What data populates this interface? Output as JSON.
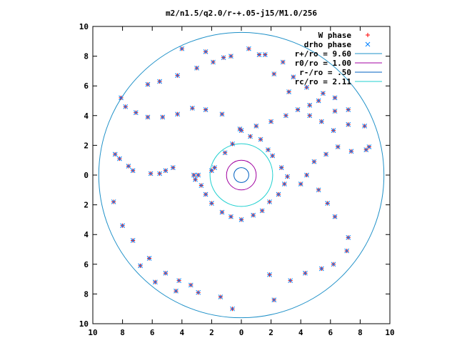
{
  "chart_data": {
    "type": "scatter",
    "title": "m2/n1.5/q2.0/r-+.05-j15/M1.0/256",
    "xlabel": "",
    "ylabel": "",
    "xlim": [
      -10,
      10
    ],
    "ylim": [
      -10,
      10
    ],
    "grid": false,
    "legend_position": "top-right",
    "x_tick_labels": [
      "10",
      "8",
      "6",
      "4",
      "2",
      "0",
      "2",
      "4",
      "6",
      "8",
      "10"
    ],
    "y_tick_labels": [
      "10",
      "8",
      "6",
      "4",
      "2",
      "0",
      "2",
      "4",
      "6",
      "8",
      "10"
    ],
    "legend": [
      {
        "label": "W phase",
        "marker": "plus",
        "color": "#ff0000"
      },
      {
        "label": "drho phase",
        "marker": "cross",
        "color": "#0080ff"
      },
      {
        "label": "r+/ro = 9.60",
        "marker": "line",
        "color": "#1e90c8"
      },
      {
        "label": "r0/ro = 1.00",
        "marker": "line",
        "color": "#a000a0"
      },
      {
        "label": "r-/ro = .50",
        "marker": "line",
        "color": "#0060c0"
      },
      {
        "label": "rc/ro = 2.11",
        "marker": "line",
        "color": "#20d0d0"
      }
    ],
    "circles": [
      {
        "name": "r+/ro = 9.60",
        "radius": 9.6,
        "color": "#1e90c8"
      },
      {
        "name": "r0/ro = 1.00",
        "radius": 1.0,
        "color": "#a000a0"
      },
      {
        "name": "r-/ro = .50",
        "radius": 0.5,
        "color": "#0060c0"
      },
      {
        "name": "rc/ro = 2.11",
        "radius": 2.11,
        "color": "#20d0d0"
      }
    ],
    "series": [
      {
        "name": "W phase",
        "points": [
          [
            -8.5,
            1.4
          ],
          [
            -8.2,
            1.1
          ],
          [
            -7.6,
            0.6
          ],
          [
            -7.3,
            0.3
          ],
          [
            -6.1,
            0.1
          ],
          [
            -5.5,
            0.1
          ],
          [
            -5.1,
            0.3
          ],
          [
            -4.6,
            0.5
          ],
          [
            -3.2,
            0.0
          ],
          [
            -3.1,
            -0.3
          ],
          [
            -2.0,
            0.3
          ],
          [
            -1.8,
            0.5
          ],
          [
            -1.1,
            1.5
          ],
          [
            -0.6,
            2.1
          ],
          [
            0.0,
            3.0
          ],
          [
            0.6,
            2.6
          ],
          [
            1.3,
            2.4
          ],
          [
            1.8,
            1.7
          ],
          [
            2.1,
            1.3
          ],
          [
            2.7,
            0.5
          ],
          [
            3.1,
            -0.1
          ],
          [
            2.9,
            -0.6
          ],
          [
            2.5,
            -1.3
          ],
          [
            1.9,
            -1.8
          ],
          [
            1.4,
            -2.4
          ],
          [
            0.8,
            -2.7
          ],
          [
            0.0,
            -3.0
          ],
          [
            -0.7,
            -2.8
          ],
          [
            -1.3,
            -2.5
          ],
          [
            -2.0,
            -1.9
          ],
          [
            -2.4,
            -1.3
          ],
          [
            -2.7,
            -0.7
          ],
          [
            -2.9,
            0.0
          ],
          [
            -8.6,
            -1.8
          ],
          [
            -8.0,
            -3.4
          ],
          [
            -7.3,
            -4.4
          ],
          [
            -6.2,
            -5.6
          ],
          [
            -5.1,
            -6.6
          ],
          [
            -4.2,
            -7.1
          ],
          [
            -3.4,
            -7.4
          ],
          [
            -6.8,
            -6.1
          ],
          [
            -5.8,
            -7.2
          ],
          [
            -4.4,
            -7.8
          ],
          [
            -2.9,
            -7.9
          ],
          [
            -1.4,
            -8.2
          ],
          [
            -0.6,
            -9.0
          ],
          [
            2.2,
            -8.4
          ],
          [
            1.9,
            -6.7
          ],
          [
            3.3,
            -7.1
          ],
          [
            4.3,
            -6.6
          ],
          [
            5.4,
            -6.3
          ],
          [
            6.2,
            -6.0
          ],
          [
            7.1,
            -5.1
          ],
          [
            7.2,
            -4.2
          ],
          [
            6.3,
            -2.8
          ],
          [
            5.8,
            -1.9
          ],
          [
            5.2,
            -1.0
          ],
          [
            4.0,
            -0.6
          ],
          [
            4.4,
            0.0
          ],
          [
            4.9,
            0.9
          ],
          [
            5.7,
            1.4
          ],
          [
            6.5,
            1.9
          ],
          [
            7.4,
            1.6
          ],
          [
            8.4,
            1.7
          ],
          [
            8.6,
            1.9
          ],
          [
            7.2,
            3.4
          ],
          [
            6.3,
            4.3
          ],
          [
            5.2,
            5.0
          ],
          [
            4.6,
            4.7
          ],
          [
            3.8,
            4.4
          ],
          [
            3.0,
            4.0
          ],
          [
            2.0,
            3.6
          ],
          [
            1.0,
            3.3
          ],
          [
            -0.1,
            3.1
          ],
          [
            -1.3,
            4.1
          ],
          [
            -2.4,
            4.4
          ],
          [
            -3.3,
            4.5
          ],
          [
            -4.3,
            4.1
          ],
          [
            -5.3,
            3.9
          ],
          [
            -6.3,
            3.9
          ],
          [
            -7.1,
            4.2
          ],
          [
            -7.8,
            4.6
          ],
          [
            -8.1,
            5.2
          ],
          [
            -6.3,
            6.1
          ],
          [
            -5.5,
            6.3
          ],
          [
            -4.3,
            6.7
          ],
          [
            -3.0,
            7.2
          ],
          [
            -1.9,
            7.6
          ],
          [
            -0.7,
            8.0
          ],
          [
            0.5,
            8.5
          ],
          [
            1.6,
            8.1
          ],
          [
            2.8,
            7.6
          ],
          [
            3.5,
            6.6
          ],
          [
            4.4,
            5.9
          ],
          [
            5.5,
            5.5
          ],
          [
            6.3,
            5.2
          ],
          [
            7.2,
            4.4
          ],
          [
            8.3,
            3.3
          ],
          [
            -4.0,
            8.5
          ],
          [
            -2.4,
            8.3
          ],
          [
            -1.2,
            7.9
          ],
          [
            1.2,
            8.1
          ],
          [
            2.2,
            6.8
          ],
          [
            3.2,
            5.6
          ],
          [
            4.6,
            4.0
          ],
          [
            5.4,
            3.6
          ],
          [
            6.2,
            3.0
          ]
        ]
      },
      {
        "name": "drho phase",
        "points": [
          [
            -8.5,
            1.4
          ],
          [
            -8.2,
            1.1
          ],
          [
            -7.6,
            0.6
          ],
          [
            -7.3,
            0.3
          ],
          [
            -6.1,
            0.1
          ],
          [
            -5.5,
            0.1
          ],
          [
            -5.1,
            0.3
          ],
          [
            -4.6,
            0.5
          ],
          [
            -3.2,
            0.0
          ],
          [
            -3.1,
            -0.3
          ],
          [
            -2.0,
            0.3
          ],
          [
            -1.8,
            0.5
          ],
          [
            -1.1,
            1.5
          ],
          [
            -0.6,
            2.1
          ],
          [
            0.0,
            3.0
          ],
          [
            0.6,
            2.6
          ],
          [
            1.3,
            2.4
          ],
          [
            1.8,
            1.7
          ],
          [
            2.1,
            1.3
          ],
          [
            2.7,
            0.5
          ],
          [
            3.1,
            -0.1
          ],
          [
            2.9,
            -0.6
          ],
          [
            2.5,
            -1.3
          ],
          [
            1.9,
            -1.8
          ],
          [
            1.4,
            -2.4
          ],
          [
            0.8,
            -2.7
          ],
          [
            0.0,
            -3.0
          ],
          [
            -0.7,
            -2.8
          ],
          [
            -1.3,
            -2.5
          ],
          [
            -2.0,
            -1.9
          ],
          [
            -2.4,
            -1.3
          ],
          [
            -2.7,
            -0.7
          ],
          [
            -2.9,
            0.0
          ],
          [
            -8.6,
            -1.8
          ],
          [
            -8.0,
            -3.4
          ],
          [
            -7.3,
            -4.4
          ],
          [
            -6.2,
            -5.6
          ],
          [
            -5.1,
            -6.6
          ],
          [
            -4.2,
            -7.1
          ],
          [
            -3.4,
            -7.4
          ],
          [
            -6.8,
            -6.1
          ],
          [
            -5.8,
            -7.2
          ],
          [
            -4.4,
            -7.8
          ],
          [
            -2.9,
            -7.9
          ],
          [
            -1.4,
            -8.2
          ],
          [
            -0.6,
            -9.0
          ],
          [
            2.2,
            -8.4
          ],
          [
            1.9,
            -6.7
          ],
          [
            3.3,
            -7.1
          ],
          [
            4.3,
            -6.6
          ],
          [
            5.4,
            -6.3
          ],
          [
            6.2,
            -6.0
          ],
          [
            7.1,
            -5.1
          ],
          [
            7.2,
            -4.2
          ],
          [
            6.3,
            -2.8
          ],
          [
            5.8,
            -1.9
          ],
          [
            5.2,
            -1.0
          ],
          [
            4.0,
            -0.6
          ],
          [
            4.4,
            0.0
          ],
          [
            4.9,
            0.9
          ],
          [
            5.7,
            1.4
          ],
          [
            6.5,
            1.9
          ],
          [
            7.4,
            1.6
          ],
          [
            8.4,
            1.7
          ],
          [
            8.6,
            1.9
          ],
          [
            7.2,
            3.4
          ],
          [
            6.3,
            4.3
          ],
          [
            5.2,
            5.0
          ],
          [
            4.6,
            4.7
          ],
          [
            3.8,
            4.4
          ],
          [
            3.0,
            4.0
          ],
          [
            2.0,
            3.6
          ],
          [
            1.0,
            3.3
          ],
          [
            -0.1,
            3.1
          ],
          [
            -1.3,
            4.1
          ],
          [
            -2.4,
            4.4
          ],
          [
            -3.3,
            4.5
          ],
          [
            -4.3,
            4.1
          ],
          [
            -5.3,
            3.9
          ],
          [
            -6.3,
            3.9
          ],
          [
            -7.1,
            4.2
          ],
          [
            -7.8,
            4.6
          ],
          [
            -8.1,
            5.2
          ],
          [
            -6.3,
            6.1
          ],
          [
            -5.5,
            6.3
          ],
          [
            -4.3,
            6.7
          ],
          [
            -3.0,
            7.2
          ],
          [
            -1.9,
            7.6
          ],
          [
            -0.7,
            8.0
          ],
          [
            0.5,
            8.5
          ],
          [
            1.6,
            8.1
          ],
          [
            2.8,
            7.6
          ],
          [
            3.5,
            6.6
          ],
          [
            4.4,
            5.9
          ],
          [
            5.5,
            5.5
          ],
          [
            6.3,
            5.2
          ],
          [
            7.2,
            4.4
          ],
          [
            8.3,
            3.3
          ],
          [
            -4.0,
            8.5
          ],
          [
            -2.4,
            8.3
          ],
          [
            -1.2,
            7.9
          ],
          [
            1.2,
            8.1
          ],
          [
            2.2,
            6.8
          ],
          [
            3.2,
            5.6
          ],
          [
            4.6,
            4.0
          ],
          [
            5.4,
            3.6
          ],
          [
            6.2,
            3.0
          ]
        ]
      }
    ]
  }
}
